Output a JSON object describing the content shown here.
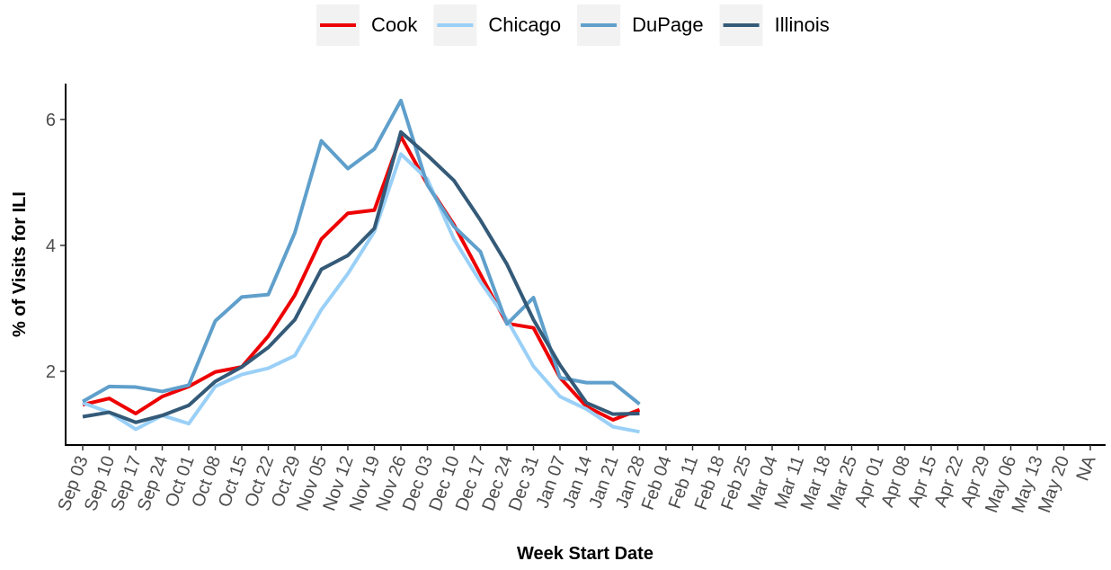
{
  "chart_data": {
    "type": "line",
    "x_label": "Week Start Date",
    "y_label": "% of Visits for ILI",
    "categories": [
      "Sep 03",
      "Sep 10",
      "Sep 17",
      "Sep 24",
      "Oct 01",
      "Oct 08",
      "Oct 15",
      "Oct 22",
      "Oct 29",
      "Nov 05",
      "Nov 12",
      "Nov 19",
      "Nov 26",
      "Dec 03",
      "Dec 10",
      "Dec 17",
      "Dec 24",
      "Dec 31",
      "Jan 07",
      "Jan 14",
      "Jan 21",
      "Jan 28",
      "Feb 04",
      "Feb 11",
      "Feb 18",
      "Feb 25",
      "Mar 04",
      "Mar 11",
      "Mar 18",
      "Mar 25",
      "Apr 01",
      "Apr 08",
      "Apr 15",
      "Apr 22",
      "Apr 29",
      "May 06",
      "May 13",
      "May 20",
      "NA"
    ],
    "series": [
      {
        "name": "Cook",
        "color": "#ee0000",
        "values": [
          1.47,
          1.57,
          1.33,
          1.6,
          1.76,
          1.99,
          2.07,
          2.56,
          3.21,
          4.1,
          4.51,
          4.56,
          5.73,
          4.97,
          4.33,
          3.54,
          2.76,
          2.69,
          1.9,
          1.44,
          1.23,
          1.39,
          null,
          null,
          null,
          null,
          null,
          null,
          null,
          null,
          null,
          null,
          null,
          null,
          null,
          null,
          null,
          null,
          null
        ]
      },
      {
        "name": "Chicago",
        "color": "#9ad0f7",
        "values": [
          1.5,
          1.35,
          1.08,
          1.3,
          1.17,
          1.76,
          1.95,
          2.05,
          2.25,
          2.98,
          3.55,
          4.22,
          5.45,
          5.05,
          4.1,
          3.42,
          2.82,
          2.08,
          1.6,
          1.4,
          1.12,
          1.04,
          null,
          null,
          null,
          null,
          null,
          null,
          null,
          null,
          null,
          null,
          null,
          null,
          null,
          null,
          null,
          null,
          null
        ]
      },
      {
        "name": "DuPage",
        "color": "#5f9fcb",
        "values": [
          1.52,
          1.76,
          1.75,
          1.68,
          1.78,
          2.8,
          3.18,
          3.22,
          4.2,
          5.66,
          5.22,
          5.53,
          6.3,
          4.96,
          4.3,
          3.9,
          2.75,
          3.17,
          1.9,
          1.82,
          1.82,
          1.48,
          null,
          null,
          null,
          null,
          null,
          null,
          null,
          null,
          null,
          null,
          null,
          null,
          null,
          null,
          null,
          null,
          null
        ]
      },
      {
        "name": "Illinois",
        "color": "#345a78",
        "values": [
          1.28,
          1.35,
          1.19,
          1.3,
          1.46,
          1.84,
          2.07,
          2.38,
          2.82,
          3.62,
          3.84,
          4.27,
          5.8,
          5.43,
          5.03,
          4.4,
          3.7,
          2.82,
          2.1,
          1.5,
          1.32,
          1.33,
          null,
          null,
          null,
          null,
          null,
          null,
          null,
          null,
          null,
          null,
          null,
          null,
          null,
          null,
          null,
          null,
          null
        ]
      }
    ],
    "ylim": [
      0.83,
      6.54
    ],
    "yticks": [
      2,
      4,
      6
    ],
    "grid": false,
    "legend": "top"
  }
}
